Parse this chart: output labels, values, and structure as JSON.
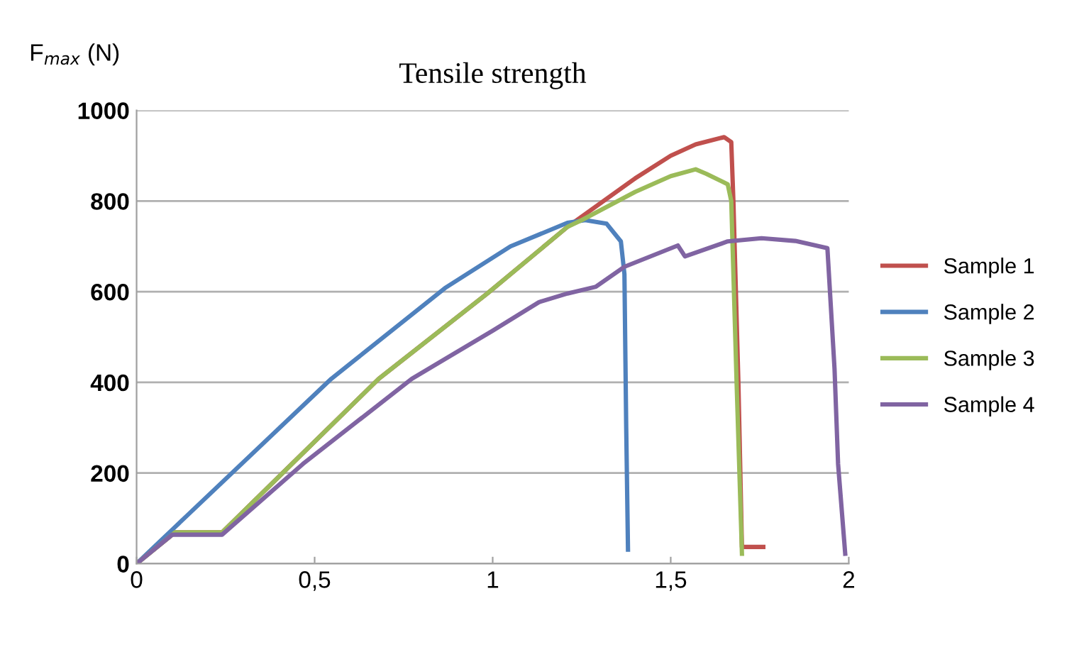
{
  "chart_data": {
    "type": "line",
    "title": "Tensile strength",
    "ylabel": "F$_{max}$ (N)",
    "xlim": [
      0,
      2
    ],
    "xticks": [
      0,
      {
        "value": 0.5,
        "label": "0,5"
      },
      1,
      {
        "value": 1.5,
        "label": "1,5"
      },
      2
    ],
    "ylim": [
      0,
      1000
    ],
    "yticks": [
      0,
      200,
      400,
      600,
      800,
      1000
    ],
    "grid": "y",
    "legend": "right",
    "marker": "none",
    "line_style": "solid",
    "series": [
      {
        "name": "Sample 1",
        "color": "#c0504d",
        "x": [
          0,
          0.108,
          0.24,
          0.41,
          0.68,
          0.985,
          1.21,
          1.4,
          1.5,
          1.57,
          1.65,
          1.67,
          1.676,
          1.69,
          1.7,
          1.72,
          1.76
        ],
        "values": [
          0,
          69,
          69,
          200,
          408,
          596,
          743,
          850,
          900,
          925,
          941,
          930,
          800,
          400,
          37,
          37,
          37
        ]
      },
      {
        "name": "Sample 2",
        "color": "#4f81bd",
        "x": [
          0,
          0.1,
          0.547,
          0.866,
          1.05,
          1.21,
          1.26,
          1.32,
          1.36,
          1.37,
          1.375,
          1.38
        ],
        "values": [
          0,
          75,
          408,
          608,
          700,
          752,
          758,
          750,
          711,
          639,
          300,
          31
        ]
      },
      {
        "name": "Sample 3",
        "color": "#9bbb59",
        "x": [
          0,
          0.108,
          0.24,
          0.41,
          0.68,
          0.985,
          1.21,
          1.25,
          1.4,
          1.5,
          1.57,
          1.6,
          1.66,
          1.67,
          1.685,
          1.7
        ],
        "values": [
          0,
          69,
          69,
          200,
          408,
          596,
          743,
          758,
          820,
          855,
          870,
          860,
          837,
          800,
          400,
          22
        ]
      },
      {
        "name": "Sample 4",
        "color": "#8064a2",
        "x": [
          0,
          0.1,
          0.24,
          0.467,
          0.773,
          1.0,
          1.13,
          1.21,
          1.29,
          1.37,
          1.52,
          1.54,
          1.66,
          1.755,
          1.85,
          1.94,
          1.96,
          1.97,
          1.99
        ],
        "values": [
          0,
          64,
          64,
          220,
          408,
          514,
          577,
          596,
          611,
          655,
          702,
          678,
          711,
          718,
          712,
          696,
          430,
          220,
          22
        ]
      }
    ]
  }
}
